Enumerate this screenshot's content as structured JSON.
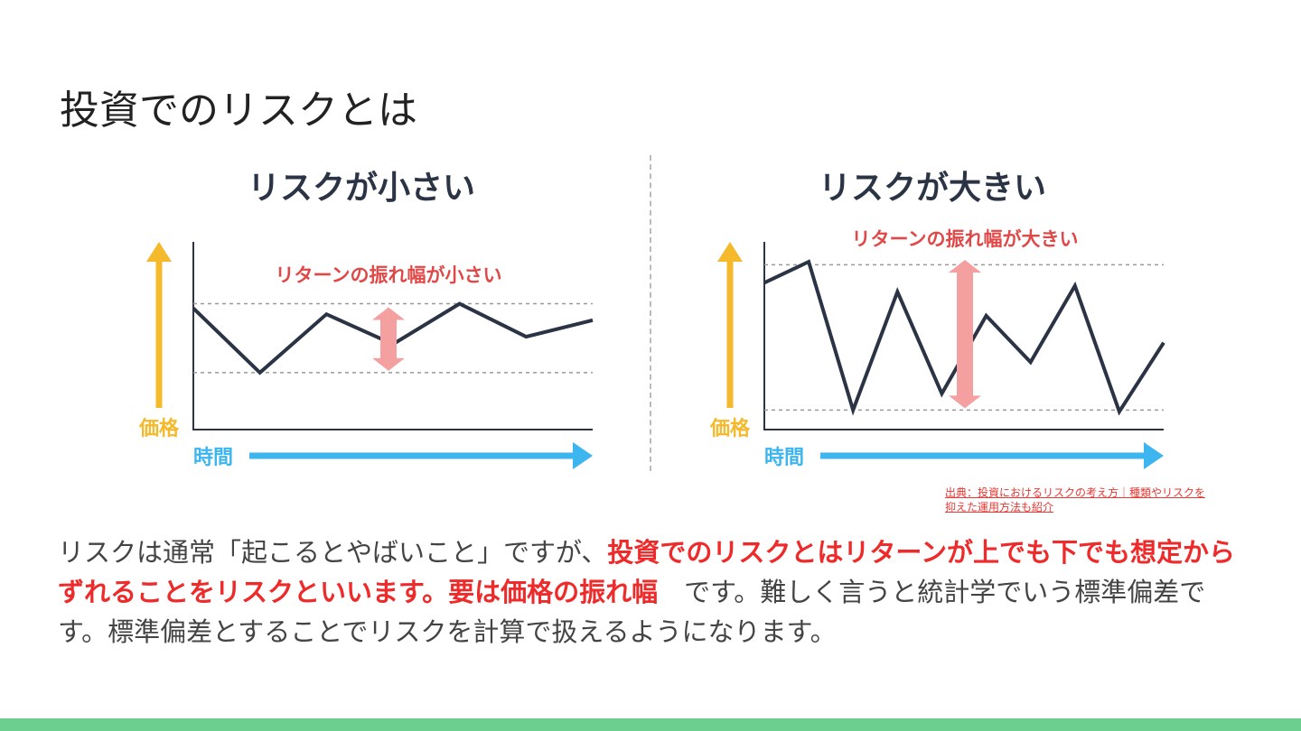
{
  "slide": {
    "title": "投資でのリスクとは"
  },
  "charts": [
    {
      "heading": "リスクが小さい",
      "annotation": "リターンの振れ幅が小さい",
      "ylabel": "価格",
      "xlabel": "時間"
    },
    {
      "heading": "リスクが大きい",
      "annotation": "リターンの振れ幅が大きい",
      "ylabel": "価格",
      "xlabel": "時間"
    }
  ],
  "chart_data": [
    {
      "type": "line",
      "title": "リスクが小さい",
      "xlabel": "時間",
      "ylabel": "価格",
      "annotation": "リターンの振れ幅が小さい",
      "values": [
        0.81,
        0.38,
        0.77,
        0.57,
        0.84,
        0.62,
        0.73
      ],
      "band": [
        0.38,
        0.84
      ],
      "grid": false,
      "colors": {
        "line": "#2b3445",
        "band": "#999999",
        "arrow": "#f4a0a0",
        "y_arrow": "#f5b92c",
        "x_arrow": "#3db6ef",
        "axis_text_y": "#f5b92c",
        "axis_text_x": "#3db6ef",
        "annotation": "#e04848"
      }
    },
    {
      "type": "line",
      "title": "リスクが大きい",
      "xlabel": "時間",
      "ylabel": "価格",
      "annotation": "リターンの振れ幅が大きい",
      "values": [
        0.98,
        1.12,
        0.13,
        0.92,
        0.24,
        0.76,
        0.45,
        0.96,
        0.12,
        0.58
      ],
      "band": [
        0.13,
        1.1
      ],
      "grid": false,
      "colors": {
        "line": "#2b3445",
        "band": "#999999",
        "arrow": "#f4a0a0",
        "y_arrow": "#f5b92c",
        "x_arrow": "#3db6ef",
        "axis_text_y": "#f5b92c",
        "axis_text_x": "#3db6ef",
        "annotation": "#e04848"
      }
    }
  ],
  "source": {
    "line1": "出典：投資におけるリスクの考え方｜種類やリスクを",
    "line2": "抑えた運用方法も紹介"
  },
  "body": {
    "part1": "リスクは通常「起こるとやばいこと」ですが、",
    "emphasis1": "投資でのリスクとはリターンが上でも下でも想定からずれることをリスクといいます。要は価格の振れ幅",
    "part2": "　です。難しく言うと統計学でいう標準偏差です。標準偏差とすることでリスクを計算で扱えるようになります。"
  },
  "colors": {
    "accent_bar": "#6ccf8f",
    "emphasis": "#ee2a2a"
  }
}
